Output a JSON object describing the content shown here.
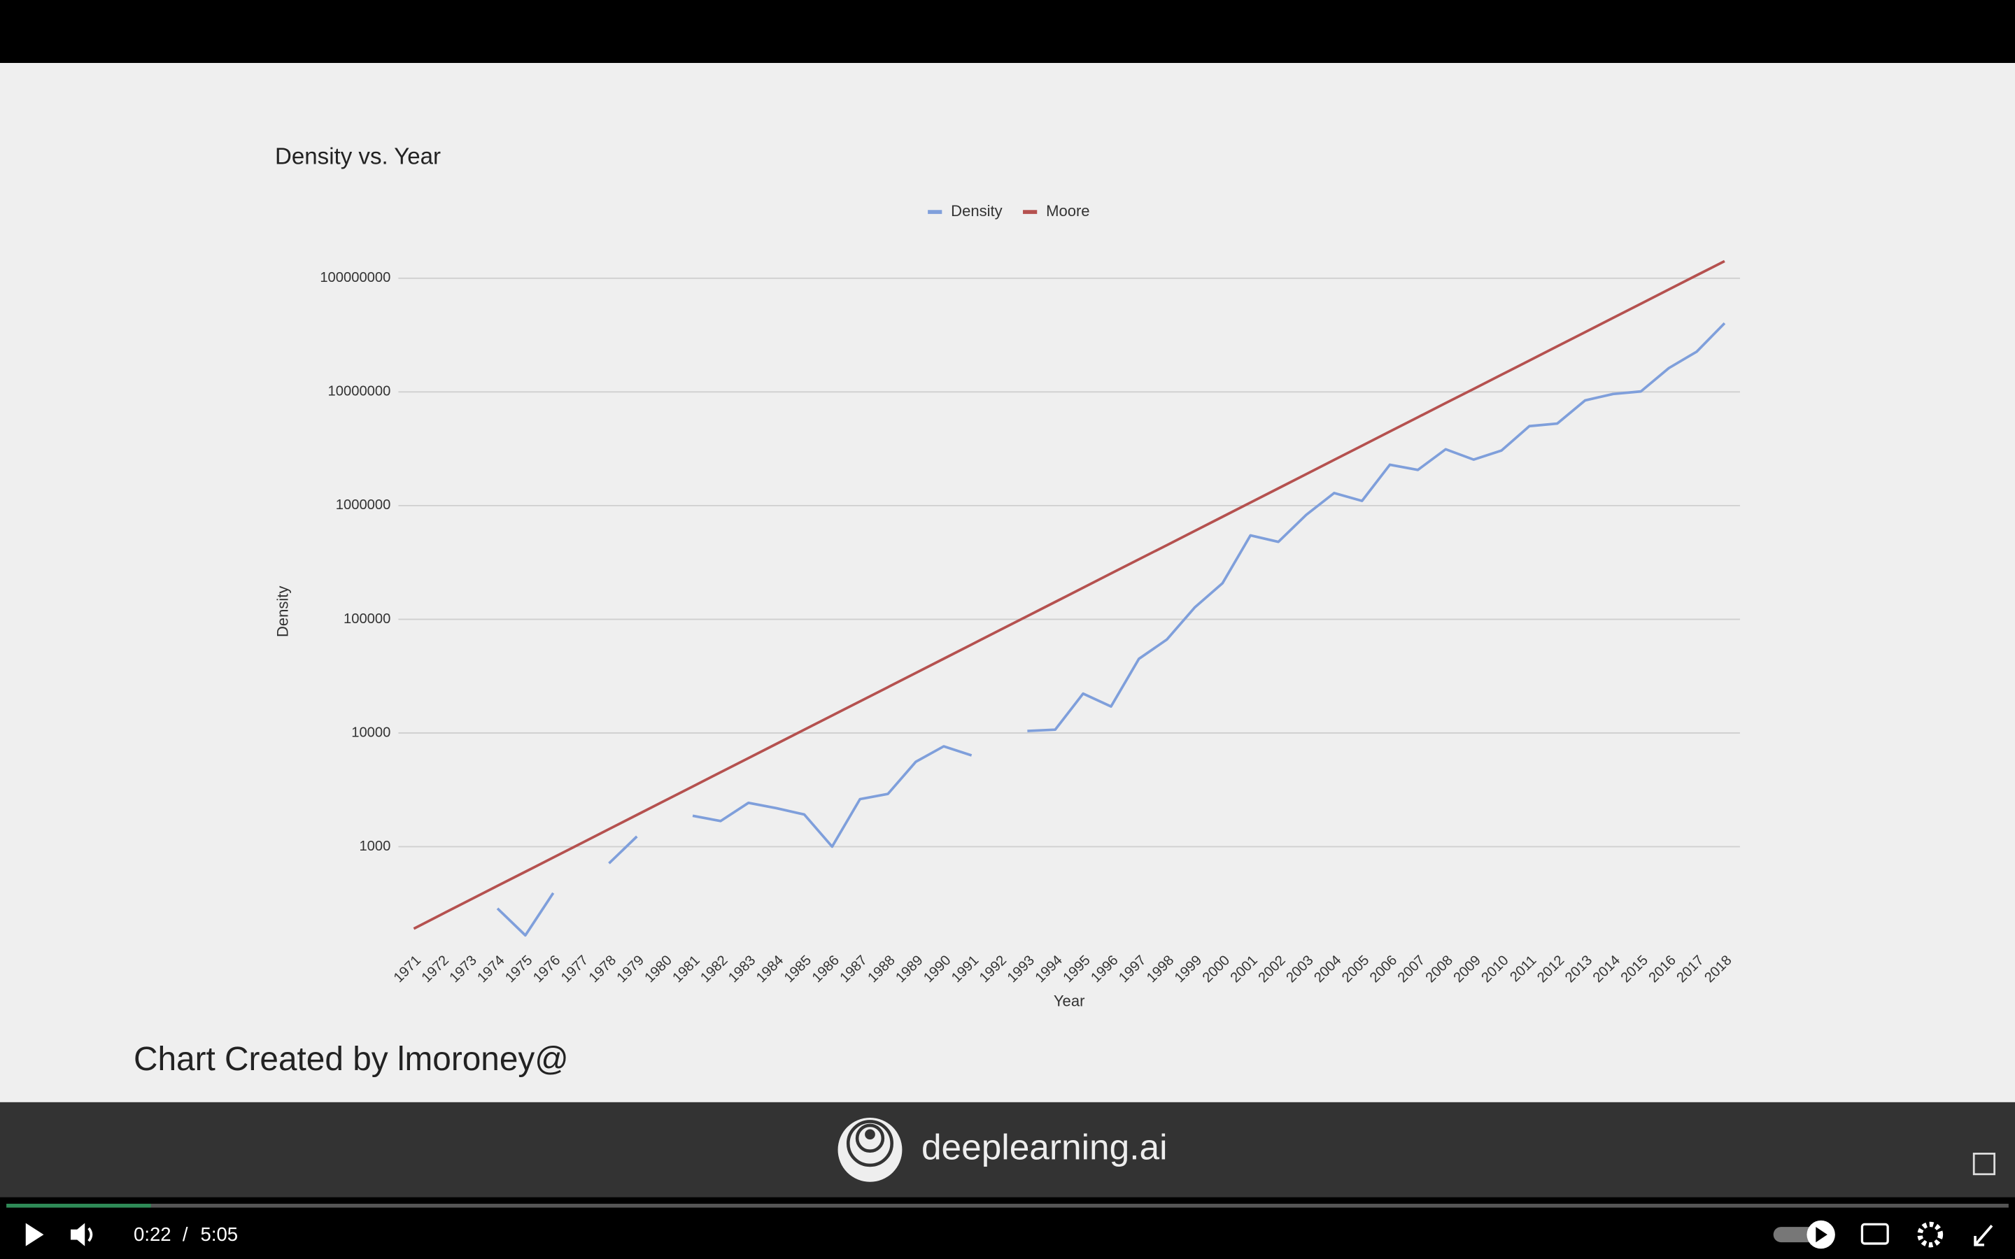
{
  "chart_data": {
    "type": "line",
    "title": "Density vs. Year",
    "x_label": "Year",
    "y_label": "Density",
    "log_scale": true,
    "grid": true,
    "legend": "top",
    "categories": [
      "1971",
      "1972",
      "1973",
      "1974",
      "1975",
      "1976",
      "1977",
      "1978",
      "1979",
      "1980",
      "1981",
      "1982",
      "1983",
      "1984",
      "1985",
      "1986",
      "1987",
      "1988",
      "1989",
      "1990",
      "1991",
      "1992",
      "1993",
      "1994",
      "1995",
      "1996",
      "1997",
      "1998",
      "1999",
      "2000",
      "2001",
      "2002",
      "2003",
      "2004",
      "2005",
      "2006",
      "2007",
      "2008",
      "2009",
      "2010",
      "2011",
      "2012",
      "2013",
      "2014",
      "2015",
      "2016",
      "2017",
      "2018"
    ],
    "series": [
      {
        "name": "Density",
        "color": "#7f9fdb",
        "values": [
          null,
          null,
          null,
          286,
          166,
          391,
          null,
          713,
          1230,
          null,
          1870,
          1680,
          2430,
          2180,
          1920,
          1000,
          2620,
          2910,
          5580,
          7630,
          6350,
          null,
          10420,
          10700,
          22200,
          17100,
          44900,
          66300,
          127000,
          208000,
          547000,
          480000,
          829000,
          1290000,
          1100000,
          2290000,
          2060000,
          3130000,
          2540000,
          3050000,
          5000000,
          5270000,
          8420000,
          9590000,
          10100000,
          16200000,
          22600000,
          40200000
        ]
      },
      {
        "name": "Moore",
        "color": "#b5514f",
        "values": [
          190,
          254,
          339,
          452,
          602,
          803,
          1070,
          1427,
          1903,
          2537,
          3382,
          4509,
          6012,
          8015,
          10690,
          14250,
          18970,
          25290,
          33740,
          44980,
          59980,
          79980,
          106700,
          142200,
          189700,
          252900,
          337300,
          448700,
          598400,
          798000,
          1064000,
          1419000,
          1892000,
          2523000,
          3365000,
          4487000,
          5984000,
          7980000,
          10620000,
          14160000,
          18880000,
          25180000,
          33570000,
          44770000,
          59700000,
          79620000,
          106200000,
          141300000
        ]
      }
    ],
    "ylim": [
      135,
      150000000
    ],
    "yticks": [
      1000,
      10000,
      100000,
      1000000,
      10000000,
      100000000
    ]
  },
  "slide": {
    "credit": "Chart Created by lmoroney@"
  },
  "banner": {
    "brand": "deeplearning.ai"
  },
  "player": {
    "current": "0:22",
    "separator": "/",
    "duration": "5:05"
  }
}
